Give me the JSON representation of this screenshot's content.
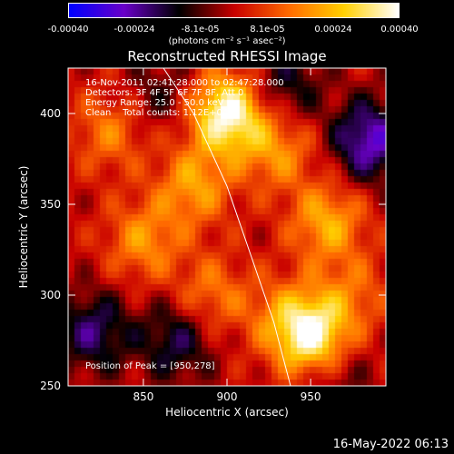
{
  "colorbar": {
    "ticks": [
      "-0.00040",
      "-0.00024",
      "-8.1e-05",
      "8.1e-05",
      "0.00024",
      "0.00040"
    ],
    "tick_values": [
      -0.0004,
      -0.00024,
      -8.1e-05,
      8.1e-05,
      0.00024,
      0.0004
    ],
    "range": [
      -0.0004,
      0.0004
    ],
    "unit": "(photons cm⁻² s⁻¹ asec⁻²)",
    "colors": [
      "#0000ff",
      "#6a00c8",
      "#000000",
      "#c80000",
      "#ff6a00",
      "#ffd000",
      "#ffffff"
    ]
  },
  "chart_data": {
    "type": "heatmap",
    "title": "Reconstructed RHESSI Image",
    "xlabel": "Heliocentric X (arcsec)",
    "ylabel": "Heliocentric Y (arcsec)",
    "xlim": [
      805,
      995
    ],
    "ylim": [
      250,
      425
    ],
    "xticks": [
      850,
      900,
      950
    ],
    "yticks": [
      250,
      300,
      350,
      400
    ],
    "annotations": [
      "16-Nov-2011 02:41:28.000 to 02:47:28.000",
      "Detectors: 3F 4F 5F 6F 7F 8F, Att 0",
      "Energy Range: 25.0 - 50.0 keV",
      "Clean    Total counts: 1.12E+04"
    ],
    "peak_label": "Position of Peak = [950,278]",
    "peak": [
      950,
      278
    ],
    "limb_curve": [
      [
        862,
        425
      ],
      [
        880,
        400
      ],
      [
        900,
        360
      ],
      [
        915,
        320
      ],
      [
        928,
        285
      ],
      [
        938,
        250
      ]
    ],
    "sources": [
      {
        "x": 900,
        "y": 400,
        "value": 0.0004
      },
      {
        "x": 950,
        "y": 278,
        "value": 0.0004
      },
      {
        "x": 880,
        "y": 360,
        "value": 0.0002
      },
      {
        "x": 850,
        "y": 330,
        "value": 0.00018
      },
      {
        "x": 960,
        "y": 340,
        "value": 0.00022
      },
      {
        "x": 930,
        "y": 380,
        "value": 0.00018
      },
      {
        "x": 890,
        "y": 300,
        "value": 0.00015
      },
      {
        "x": 830,
        "y": 390,
        "value": 0.00015
      },
      {
        "x": 975,
        "y": 300,
        "value": 0.00012
      },
      {
        "x": 930,
        "y": 290,
        "value": 0.0001
      },
      {
        "x": 820,
        "y": 280,
        "value": -0.0002
      },
      {
        "x": 870,
        "y": 275,
        "value": -0.00018
      },
      {
        "x": 985,
        "y": 385,
        "value": -0.00028
      },
      {
        "x": 935,
        "y": 415,
        "value": -0.00015
      },
      {
        "x": 860,
        "y": 410,
        "value": -0.0001
      },
      {
        "x": 965,
        "y": 255,
        "value": -0.0001
      }
    ]
  },
  "footer": {
    "date": "16-May-2022 06:13"
  }
}
